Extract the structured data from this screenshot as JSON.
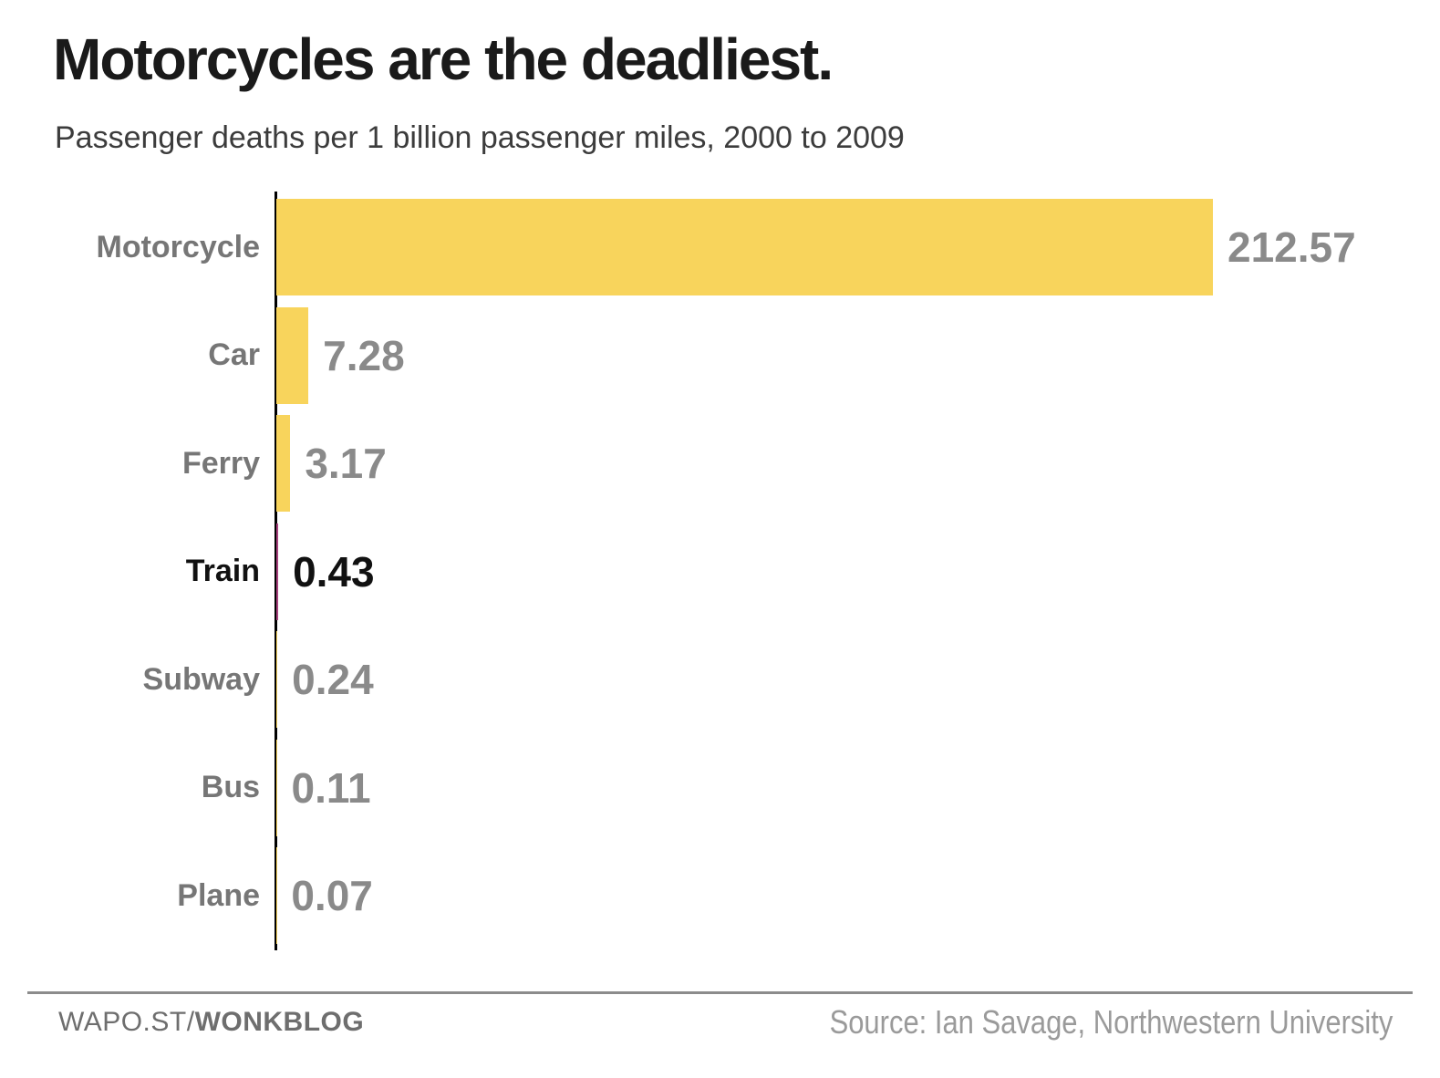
{
  "chart_data": {
    "type": "bar",
    "orientation": "horizontal",
    "title": "Motorcycles are the deadliest.",
    "subtitle": "Passenger deaths per 1 billion passenger miles, 2000 to 2009",
    "categories": [
      "Motorcycle",
      "Car",
      "Ferry",
      "Train",
      "Subway",
      "Bus",
      "Plane"
    ],
    "values": [
      212.57,
      7.28,
      3.17,
      0.43,
      0.24,
      0.11,
      0.07
    ],
    "value_labels": [
      "212.57",
      "7.28",
      "3.17",
      "0.43",
      "0.24",
      "0.11",
      "0.07"
    ],
    "xlim": [
      0,
      212.57
    ],
    "grid": false,
    "legend": false,
    "highlight": {
      "category": "Train",
      "index": 3
    },
    "colors": {
      "bar": "#F8D45C",
      "highlight_bar": "#A8417E",
      "label": "#767676",
      "value": "#8A8A8A",
      "highlight_text": "#111111",
      "axis": "#000000"
    }
  },
  "footer": {
    "brand_prefix": "WAPO.ST/",
    "brand_bold": "WONKBLOG",
    "source": "Source: Ian Savage, Northwestern University"
  }
}
